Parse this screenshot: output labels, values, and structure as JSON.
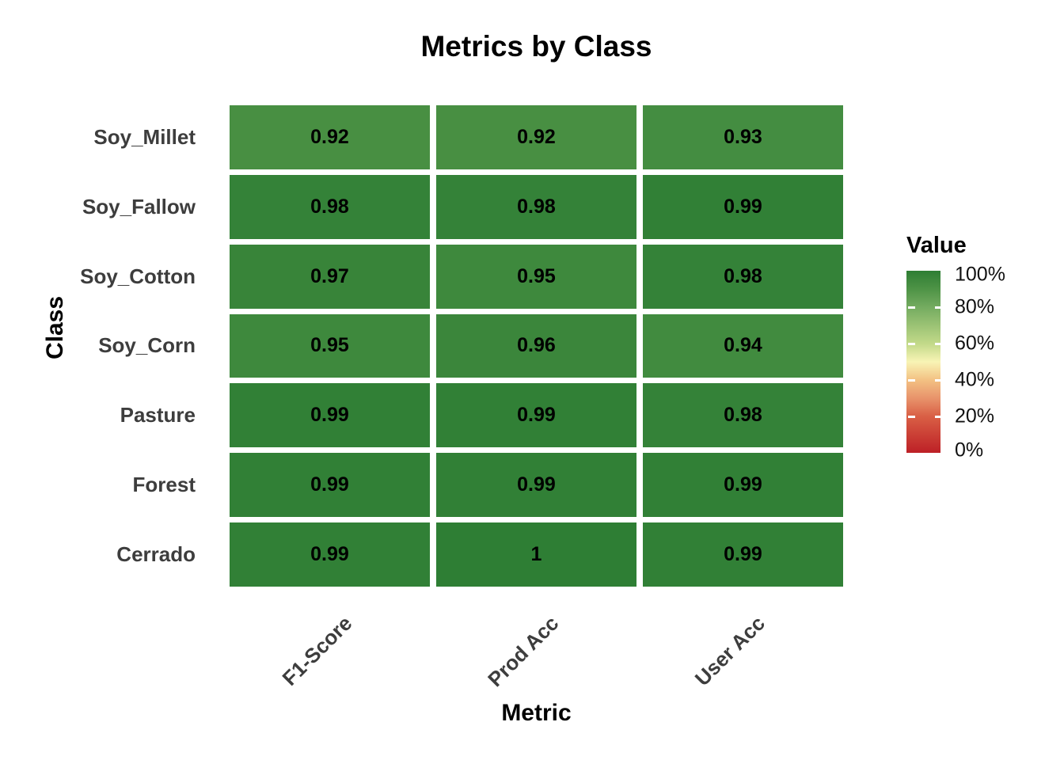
{
  "chart_data": {
    "type": "heatmap",
    "title": "Metrics by Class",
    "xlabel": "Metric",
    "ylabel": "Class",
    "categories_x": [
      "F1-Score",
      "Prod Acc",
      "User Acc"
    ],
    "categories_y": [
      "Soy_Millet",
      "Soy_Fallow",
      "Soy_Cotton",
      "Soy_Corn",
      "Pasture",
      "Forest",
      "Cerrado"
    ],
    "rows": [
      {
        "class": "Soy_Millet",
        "values": [
          0.92,
          0.92,
          0.93
        ],
        "labels": [
          "0.92",
          "0.92",
          "0.93"
        ]
      },
      {
        "class": "Soy_Fallow",
        "values": [
          0.98,
          0.98,
          0.99
        ],
        "labels": [
          "0.98",
          "0.98",
          "0.99"
        ]
      },
      {
        "class": "Soy_Cotton",
        "values": [
          0.97,
          0.95,
          0.98
        ],
        "labels": [
          "0.97",
          "0.95",
          "0.98"
        ]
      },
      {
        "class": "Soy_Corn",
        "values": [
          0.95,
          0.96,
          0.94
        ],
        "labels": [
          "0.95",
          "0.96",
          "0.94"
        ]
      },
      {
        "class": "Pasture",
        "values": [
          0.99,
          0.99,
          0.98
        ],
        "labels": [
          "0.99",
          "0.99",
          "0.98"
        ]
      },
      {
        "class": "Forest",
        "values": [
          0.99,
          0.99,
          0.99
        ],
        "labels": [
          "0.99",
          "0.99",
          "0.99"
        ]
      },
      {
        "class": "Cerrado",
        "values": [
          0.99,
          1.0,
          0.99
        ],
        "labels": [
          "0.99",
          "1",
          "0.99"
        ]
      }
    ],
    "value_range": [
      0,
      1
    ],
    "legend": {
      "title": "Value",
      "ticks": [
        "100%",
        "80%",
        "60%",
        "40%",
        "20%",
        "0%"
      ],
      "position": "right"
    },
    "colorscale": {
      "name": "red-yellow-green",
      "stops": [
        [
          0.0,
          "#bd2026"
        ],
        [
          0.2,
          "#d95f45"
        ],
        [
          0.3,
          "#e8936b"
        ],
        [
          0.4,
          "#f3c183"
        ],
        [
          0.5,
          "#f8f4b5"
        ],
        [
          0.6,
          "#c2d989"
        ],
        [
          0.8,
          "#74ab60"
        ],
        [
          0.9,
          "#4e9346"
        ],
        [
          1.0,
          "#2e7e34"
        ]
      ]
    },
    "layout": {
      "grid": "off",
      "background": "#ffffff"
    }
  }
}
